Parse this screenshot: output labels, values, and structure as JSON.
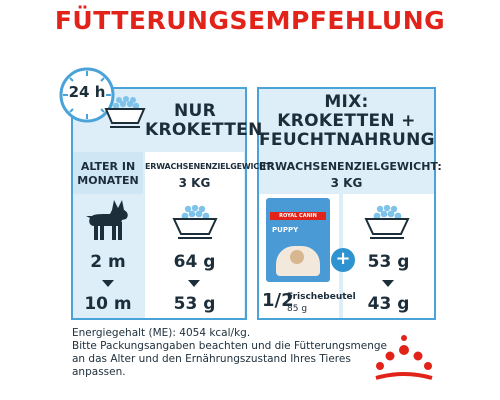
{
  "title": "FÜTTERUNGSEMPFEHLUNG",
  "clock": {
    "label": "24 h"
  },
  "left_panel": {
    "header": [
      "NUR",
      "KROKETTEN"
    ],
    "age_label": [
      "ALTER IN",
      "MONATEN"
    ],
    "weight_label": "ERWACHSENENZIELGEWICHT:",
    "weight_value": "3 KG",
    "rows": [
      {
        "age": "2 m",
        "amount": "64 g"
      },
      {
        "age": "10 m",
        "amount": "53 g"
      }
    ]
  },
  "right_panel": {
    "header": [
      "MIX:",
      "KROKETTEN +",
      "FEUCHTNAHRUNG"
    ],
    "weight_label": "ERWACHSENENZIELGEWICHT:",
    "weight_value": "3 KG",
    "pouch_fraction": "1/2",
    "pouch_label": "Frischebeutel",
    "pouch_weight": "85 g",
    "pouch_brand": "ROYAL CANIN",
    "pouch_product": "PUPPY",
    "amounts": [
      "53 g",
      "43 g"
    ],
    "plus": "+"
  },
  "footer": {
    "energy": "Energiegehalt (ME): 4054 kcal/kg.",
    "note": [
      "Bitte Packungsangaben beachten und die Fütterungsmenge",
      "an das Alter und den Ernährungszustand Ihres Tieres",
      "anpassen."
    ]
  },
  "colors": {
    "title": "#e2231a",
    "border": "#4aa3d8",
    "panel": "#ddeef8",
    "text": "#1d2e3b",
    "accent": "#2f93d1"
  }
}
